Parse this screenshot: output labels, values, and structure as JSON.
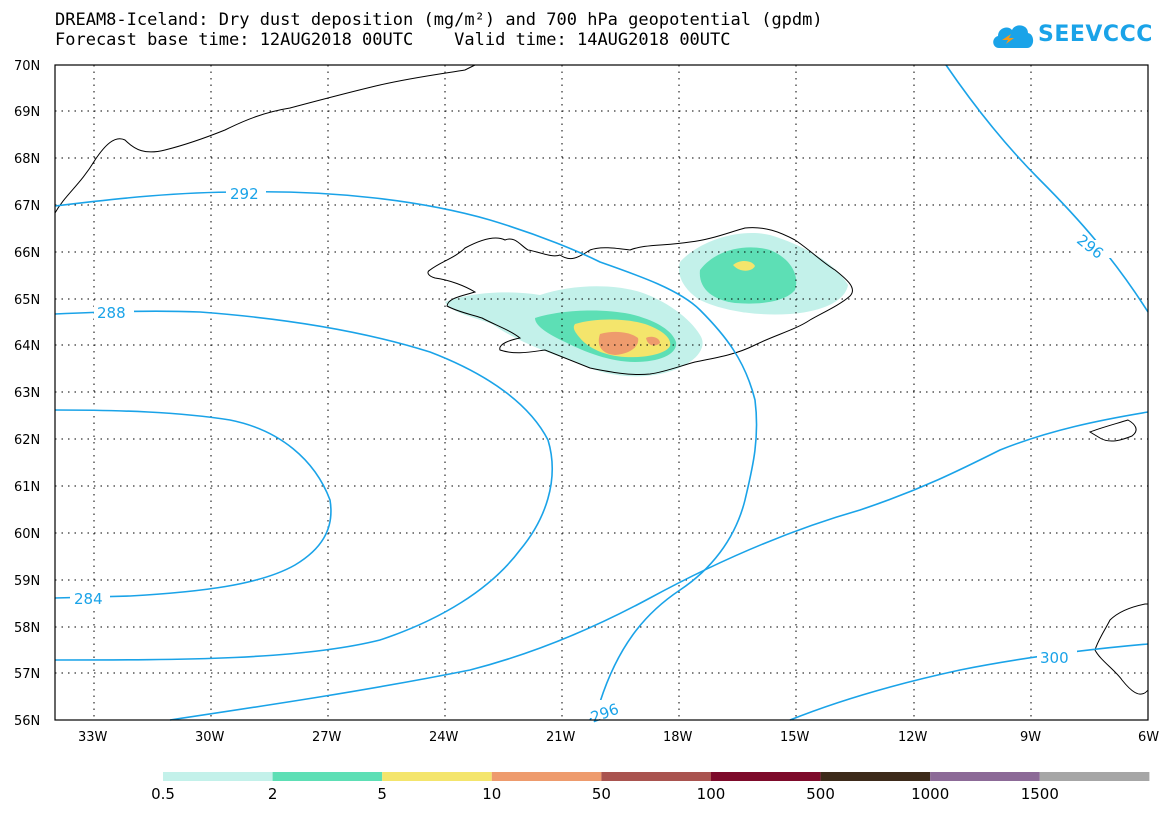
{
  "header": {
    "title_line1": "DREAM8-Iceland: Dry dust deposition (mg/m²) and 700 hPa geopotential (gpdm)",
    "title_line2": "Forecast base time: 12AUG2018 00UTC    Valid time: 14AUG2018 00UTC"
  },
  "logo": {
    "text": "SEEVCCC",
    "icon": "cloud-icon",
    "color": "#1aa3e8"
  },
  "map": {
    "lat_labels": [
      "70N",
      "69N",
      "68N",
      "67N",
      "66N",
      "65N",
      "64N",
      "63N",
      "62N",
      "61N",
      "60N",
      "59N",
      "58N",
      "57N",
      "56N"
    ],
    "lon_labels": [
      "33W",
      "30W",
      "27W",
      "24W",
      "21W",
      "18W",
      "15W",
      "12W",
      "9W",
      "6W"
    ],
    "contour_color": "#1aa3e8",
    "contour_labels": [
      "292",
      "288",
      "284",
      "296",
      "296",
      "300"
    ]
  },
  "legend": {
    "colors": [
      "#c3f1ea",
      "#5ddfb5",
      "#f4e56c",
      "#ee9b6d",
      "#a9534f",
      "#7d0a2a",
      "#3d2a1a",
      "#8c6a97",
      "#a6a6a6"
    ],
    "labels": [
      "0.5",
      "2",
      "5",
      "10",
      "50",
      "100",
      "500",
      "1000",
      "1500"
    ]
  }
}
